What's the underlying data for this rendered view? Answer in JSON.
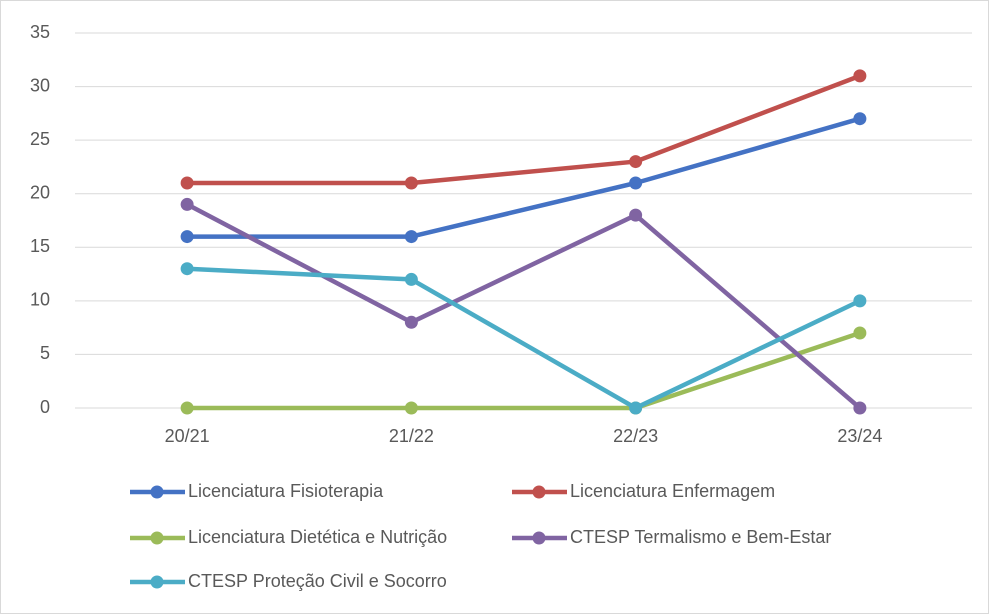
{
  "chart_data": {
    "type": "line",
    "categories": [
      "20/21",
      "21/22",
      "22/23",
      "23/24"
    ],
    "series": [
      {
        "name": "Licenciatura Fisioterapia",
        "color": "#4472c4",
        "values": [
          16,
          16,
          21,
          27
        ]
      },
      {
        "name": "Licenciatura Enfermagem",
        "color": "#c0504d",
        "values": [
          21,
          21,
          23,
          31
        ]
      },
      {
        "name": "Licenciatura Dietética e Nutrição",
        "color": "#9bbb59",
        "values": [
          0,
          0,
          0,
          7
        ]
      },
      {
        "name": "CTESP Termalismo e Bem-Estar",
        "color": "#8064a2",
        "values": [
          19,
          8,
          18,
          0
        ]
      },
      {
        "name": "CTESP Proteção Civil e Socorro",
        "color": "#4bacc6",
        "values": [
          13,
          12,
          0,
          10
        ]
      }
    ],
    "ylim": [
      0,
      35
    ],
    "yticks": [
      0,
      5,
      10,
      15,
      20,
      25,
      30,
      35
    ],
    "grid": true,
    "legend": "bottom"
  }
}
